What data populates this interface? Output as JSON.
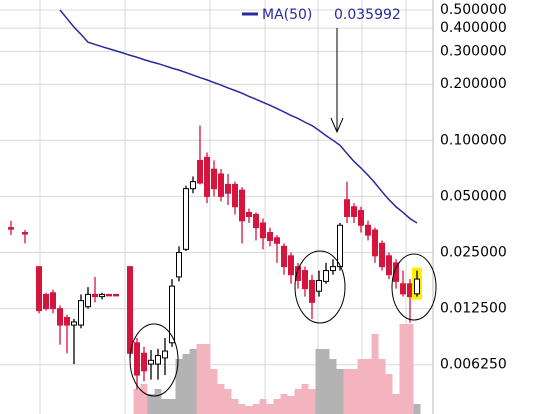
{
  "chart_data": {
    "type": "candlestick",
    "log_scale": true,
    "grid": true,
    "ylim": [
      0.0034,
      0.566
    ],
    "yticks": [
      {
        "value": 0.5,
        "label": "0.500000"
      },
      {
        "value": 0.4,
        "label": "0.400000"
      },
      {
        "value": 0.3,
        "label": "0.300000"
      },
      {
        "value": 0.2,
        "label": "0.200000"
      },
      {
        "value": 0.1,
        "label": "0.100000"
      },
      {
        "value": 0.05,
        "label": "0.050000"
      },
      {
        "value": 0.025,
        "label": "0.025000"
      },
      {
        "value": 0.0125,
        "label": "0.012500"
      },
      {
        "value": 0.00625,
        "label": "0.006250"
      }
    ],
    "up_color": "#ffffff",
    "down_color": "#d6153e",
    "open": [
      0.034,
      null,
      0.032,
      null,
      0.021,
      0.0149,
      0.0152,
      0.0125,
      0.0112,
      0.0102,
      0.0102,
      0.0128,
      0.0149,
      0.0145,
      0.0149,
      0.0149,
      null,
      0.021,
      0.0082,
      0.0072,
      0.0063,
      0.0063,
      0.0068,
      0.0082,
      0.0185,
      0.026,
      0.055,
      0.078,
      0.081,
      0.07,
      0.066,
      0.058,
      0.058,
      0.054,
      0.041,
      0.04,
      0.036,
      0.032,
      0.03,
      0.027,
      0.024,
      0.021,
      0.02,
      0.0177,
      0.0155,
      0.0175,
      0.02,
      0.021,
      0.048,
      0.044,
      0.042,
      0.035,
      0.033,
      0.028,
      0.024,
      0.022,
      0.017,
      0.017,
      0.015,
      null
    ],
    "high": [
      0.037,
      null,
      0.033,
      null,
      0.021,
      0.0152,
      0.0158,
      0.013,
      0.0116,
      0.011,
      0.0149,
      0.0163,
      0.0185,
      0.0152,
      0.0149,
      0.0149,
      null,
      0.021,
      0.0087,
      0.0078,
      0.0075,
      0.0076,
      0.0087,
      0.018,
      0.027,
      0.057,
      0.064,
      0.12,
      0.086,
      0.078,
      0.07,
      0.066,
      0.06,
      0.056,
      0.043,
      0.041,
      0.038,
      0.034,
      0.031,
      0.028,
      0.025,
      0.022,
      0.021,
      0.019,
      0.02,
      0.022,
      0.023,
      0.036,
      0.06,
      0.046,
      0.044,
      0.037,
      0.034,
      0.029,
      0.025,
      0.023,
      0.02,
      0.018,
      0.02,
      null
    ],
    "low": [
      0.031,
      null,
      0.028,
      null,
      0.0118,
      0.0122,
      0.0118,
      0.008,
      0.0072,
      0.0063,
      0.0098,
      0.0125,
      0.0135,
      0.014,
      0.0149,
      0.0149,
      null,
      0.0068,
      0.0046,
      0.0051,
      0.0052,
      0.0052,
      0.0055,
      0.0078,
      0.0175,
      0.0255,
      0.052,
      0.058,
      0.046,
      0.05,
      0.047,
      0.045,
      0.04,
      0.028,
      0.036,
      0.029,
      0.026,
      0.027,
      0.022,
      0.019,
      0.017,
      0.016,
      0.0145,
      0.011,
      0.0145,
      0.017,
      0.019,
      0.02,
      0.036,
      0.036,
      0.032,
      0.029,
      0.022,
      0.02,
      0.018,
      0.016,
      0.0145,
      0.0105,
      0.0145,
      null
    ],
    "close": [
      0.034,
      null,
      0.032,
      null,
      0.0122,
      0.0125,
      0.0125,
      0.0102,
      0.0102,
      0.0106,
      0.0138,
      0.0149,
      0.0145,
      0.0149,
      0.0149,
      0.0149,
      null,
      0.0072,
      0.0055,
      0.0058,
      0.0066,
      0.007,
      0.0074,
      0.0165,
      0.025,
      0.055,
      0.06,
      0.059,
      0.05,
      0.055,
      0.05,
      0.052,
      0.044,
      0.037,
      0.039,
      0.034,
      0.03,
      0.029,
      0.028,
      0.021,
      0.019,
      0.0177,
      0.016,
      0.0135,
      0.0177,
      0.02,
      0.021,
      0.035,
      0.039,
      0.039,
      0.035,
      0.031,
      0.024,
      0.021,
      0.019,
      0.0175,
      0.015,
      0.0145,
      0.018,
      null
    ],
    "volume": {
      "ylim": [
        0,
        100
      ],
      "up_color": "#b3b3b3",
      "down_color": "#f4b4bf",
      "values": [
        null,
        null,
        null,
        null,
        null,
        null,
        null,
        null,
        null,
        null,
        null,
        null,
        null,
        null,
        null,
        null,
        null,
        null,
        25,
        30,
        20,
        25,
        15,
        15,
        55,
        60,
        65,
        70,
        70,
        45,
        30,
        25,
        15,
        10,
        8,
        10,
        15,
        10,
        15,
        20,
        18,
        25,
        30,
        25,
        65,
        65,
        55,
        45,
        45,
        45,
        55,
        55,
        80,
        55,
        40,
        20,
        90,
        90,
        10,
        null
      ]
    },
    "series": [
      {
        "name": "MA(50)",
        "color": "#2a2a9e",
        "values": [
          null,
          null,
          null,
          null,
          null,
          null,
          null,
          0.5,
          0.45,
          0.405,
          0.37,
          0.336,
          0.327,
          0.318,
          0.31,
          0.302,
          0.294,
          0.286,
          0.279,
          0.271,
          0.264,
          0.258,
          0.251,
          0.244,
          0.238,
          0.231,
          0.224,
          0.217,
          0.211,
          0.204,
          0.198,
          0.191,
          0.185,
          0.179,
          0.172,
          0.166,
          0.16,
          0.154,
          0.148,
          0.142,
          0.136,
          0.131,
          0.125,
          0.12,
          0.113,
          0.106,
          0.1,
          0.094,
          0.085,
          0.077,
          0.071,
          0.065,
          0.059,
          0.053,
          0.048,
          0.044,
          0.041,
          0.038,
          0.035992,
          null
        ]
      }
    ],
    "highlight_index": 58,
    "highlight_color": "#ffee00"
  }
}
